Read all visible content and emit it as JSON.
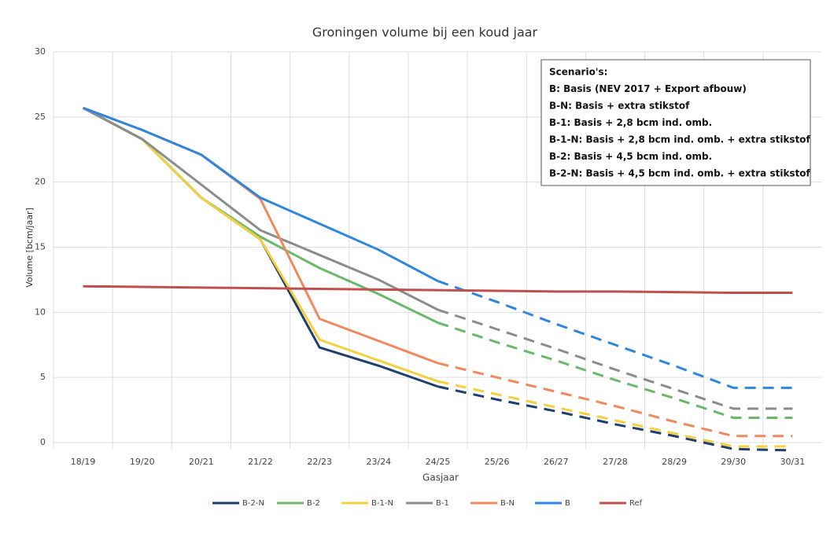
{
  "chart_data": {
    "type": "line",
    "title": "Groningen volume bij een koud jaar",
    "x_label": "Gasjaar",
    "y_label": "Volume [bcm/jaar]",
    "categories": [
      "18/19",
      "19/20",
      "20/21",
      "21/22",
      "22/23",
      "23/24",
      "24/25",
      "25/26",
      "26/27",
      "27/28",
      "28/29",
      "29/30",
      "30/31"
    ],
    "ylim": [
      0,
      30
    ],
    "yticks": [
      0,
      5,
      10,
      15,
      20,
      25,
      30
    ],
    "grid": true,
    "legend": "bottom",
    "annotation": [
      "Scenario's:",
      "B: Basis (NEV 2017 + Export afbouw)",
      "B-N: Basis + extra stikstof",
      "B-1: Basis + 2,8 bcm ind. omb.",
      "B-1-N: Basis + 2,8 bcm ind. omb. + extra stikstof",
      "B-2: Basis + 4,5 bcm ind. omb.",
      "B-2-N: Basis + 4,5 bcm ind. omb. + extra stikstof"
    ],
    "series": [
      {
        "name": "B-2-N",
        "color": "#1f3f6e",
        "dash_from": "24/25",
        "values": [
          25.7,
          23.3,
          18.8,
          15.6,
          7.3,
          5.9,
          4.3,
          3.3,
          2.4,
          1.4,
          0.5,
          -0.5,
          -0.6
        ]
      },
      {
        "name": "B-2",
        "color": "#6ab96a",
        "dash_from": "24/25",
        "values": [
          25.7,
          23.3,
          18.8,
          15.8,
          13.4,
          11.4,
          9.2,
          7.7,
          6.3,
          4.8,
          3.4,
          1.9,
          1.9
        ]
      },
      {
        "name": "B-1-N",
        "color": "#f4d03f",
        "dash_from": "24/25",
        "values": [
          25.7,
          23.3,
          18.8,
          15.6,
          7.9,
          6.3,
          4.7,
          3.7,
          2.7,
          1.7,
          0.7,
          -0.3,
          -0.3
        ]
      },
      {
        "name": "B-1",
        "color": "#8c8c8c",
        "dash_from": "24/25",
        "values": [
          25.7,
          23.3,
          19.8,
          16.3,
          14.4,
          12.5,
          10.2,
          8.7,
          7.2,
          5.6,
          4.1,
          2.6,
          2.6
        ]
      },
      {
        "name": "B-N",
        "color": "#f08a5d",
        "dash_from": "24/25",
        "values": [
          25.7,
          24.0,
          22.1,
          18.7,
          9.5,
          7.8,
          6.1,
          5.0,
          3.9,
          2.8,
          1.6,
          0.5,
          0.5
        ]
      },
      {
        "name": "B",
        "color": "#2e86de",
        "dash_from": "24/25",
        "values": [
          25.7,
          24.0,
          22.1,
          18.8,
          16.8,
          14.8,
          12.4,
          10.8,
          9.1,
          7.5,
          5.9,
          4.2,
          4.2
        ]
      },
      {
        "name": "Ref",
        "color": "#c0504d",
        "values": [
          12.0,
          11.95,
          11.9,
          11.85,
          11.8,
          11.75,
          11.7,
          11.65,
          11.6,
          11.6,
          11.55,
          11.5,
          11.5
        ]
      }
    ]
  }
}
